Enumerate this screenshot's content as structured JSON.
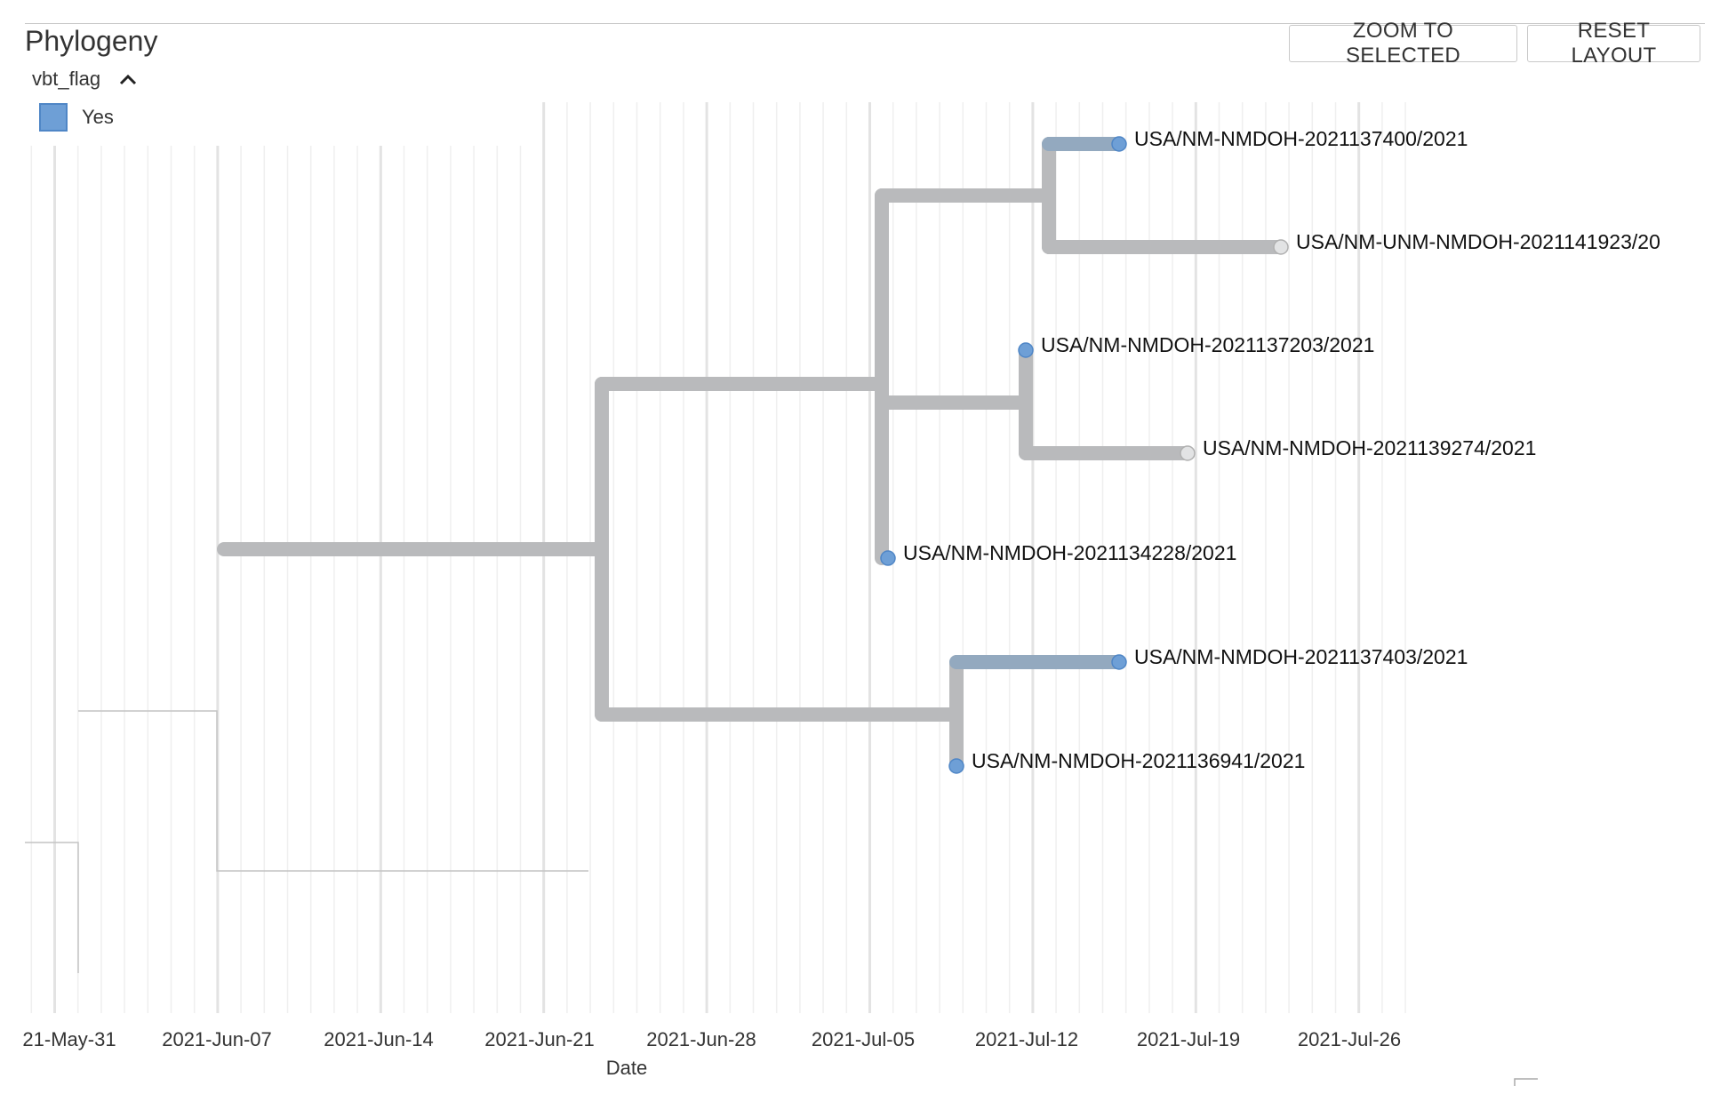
{
  "panel": {
    "title": "Phylogeny",
    "zoom_button_label": "ZOOM TO SELECTED",
    "reset_button_label": "RESET LAYOUT"
  },
  "legend": {
    "field": "vbt_flag",
    "items": [
      {
        "label": "Yes",
        "color": "#6e9fd6"
      }
    ]
  },
  "colors": {
    "branch": "#b9babc",
    "branch_flagged": "#93a9bf",
    "flagged_tip": "#6e9fd6",
    "unflagged_tip": "#e2e3e4",
    "grid_major": "#e3e3e3",
    "grid_minor": "#efefef"
  },
  "chart_data": {
    "type": "phylogenetic-tree",
    "xlabel": "Date",
    "x_ticks": [
      "21-May-31",
      "2021-Jun-07",
      "2021-Jun-14",
      "2021-Jun-21",
      "2021-Jun-28",
      "2021-Jul-05",
      "2021-Jul-12",
      "2021-Jul-19",
      "2021-Jul-26"
    ],
    "tips": [
      {
        "label": "USA/NM-NMDOH-2021137400/2021",
        "vbt_flag": "Yes"
      },
      {
        "label": "USA/NM-UNM-NMDOH-2021141923/20",
        "vbt_flag": ""
      },
      {
        "label": "USA/NM-NMDOH-2021137203/2021",
        "vbt_flag": "Yes"
      },
      {
        "label": "USA/NM-NMDOH-2021139274/2021",
        "vbt_flag": ""
      },
      {
        "label": "USA/NM-NMDOH-2021134228/2021",
        "vbt_flag": "Yes"
      },
      {
        "label": "USA/NM-NMDOH-2021137403/2021",
        "vbt_flag": "Yes"
      },
      {
        "label": "USA/NM-NMDOH-2021136941/2021",
        "vbt_flag": "Yes"
      }
    ]
  }
}
